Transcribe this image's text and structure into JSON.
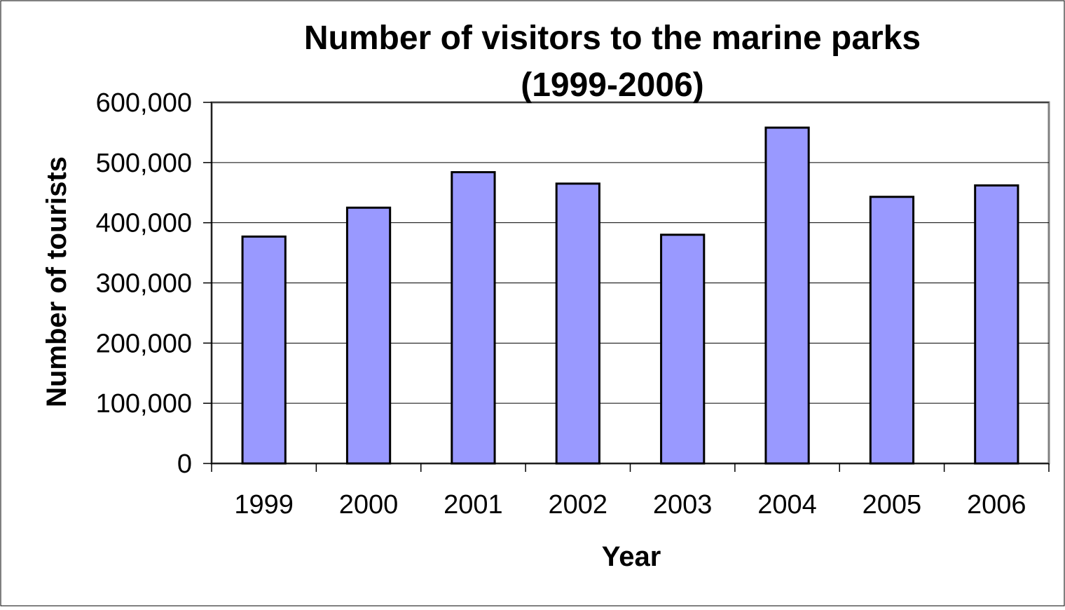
{
  "chart_data": {
    "type": "bar",
    "title_lines": [
      "Number of visitors to the marine parks",
      "(1999-2006)"
    ],
    "xlabel": "Year",
    "ylabel": "Number of tourists",
    "categories": [
      "1999",
      "2000",
      "2001",
      "2002",
      "2003",
      "2004",
      "2005",
      "2006"
    ],
    "values": [
      377000,
      425000,
      484000,
      465000,
      380000,
      558000,
      443000,
      462000
    ],
    "ylim": [
      0,
      600000
    ],
    "yticks": [
      0,
      100000,
      200000,
      300000,
      400000,
      500000,
      600000
    ],
    "ytick_labels": [
      "0",
      "100,000",
      "200,000",
      "300,000",
      "400,000",
      "500,000",
      "600,000"
    ],
    "grid": true,
    "legend": "none",
    "bar_color": "#9999ff",
    "bar_edge_color": "#000000"
  }
}
